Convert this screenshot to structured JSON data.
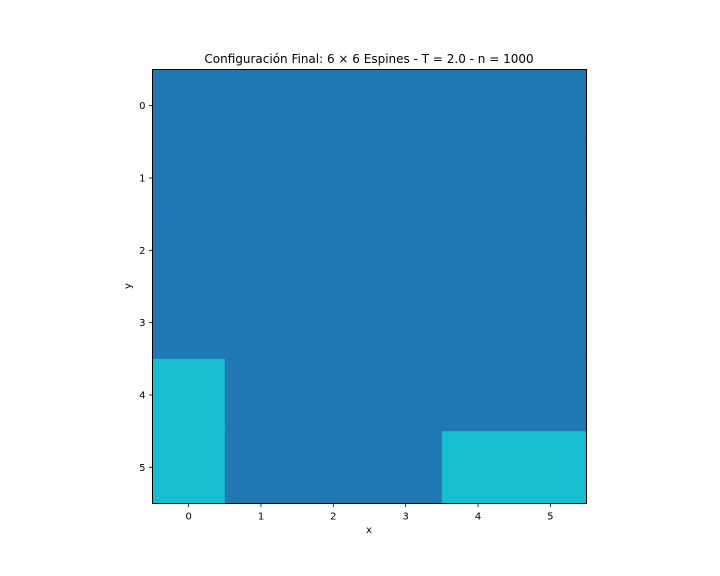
{
  "chart_data": {
    "type": "heatmap",
    "title": "Configuración Final: 6 × 6 Espines - T = 2.0 - n = 1000",
    "xlabel": "x",
    "ylabel": "y",
    "x_ticks": [
      "0",
      "1",
      "2",
      "3",
      "4",
      "5"
    ],
    "y_ticks": [
      "0",
      "1",
      "2",
      "3",
      "4",
      "5"
    ],
    "grid": false,
    "y_axis_inverted": true,
    "matrix": [
      [
        1,
        1,
        1,
        1,
        1,
        1
      ],
      [
        1,
        1,
        1,
        1,
        1,
        1
      ],
      [
        1,
        1,
        1,
        1,
        1,
        1
      ],
      [
        1,
        1,
        1,
        1,
        1,
        1
      ],
      [
        -1,
        1,
        1,
        1,
        1,
        1
      ],
      [
        -1,
        1,
        1,
        1,
        -1,
        -1
      ]
    ],
    "colors": {
      "1": "#1f77b4",
      "-1": "#17becf"
    }
  }
}
